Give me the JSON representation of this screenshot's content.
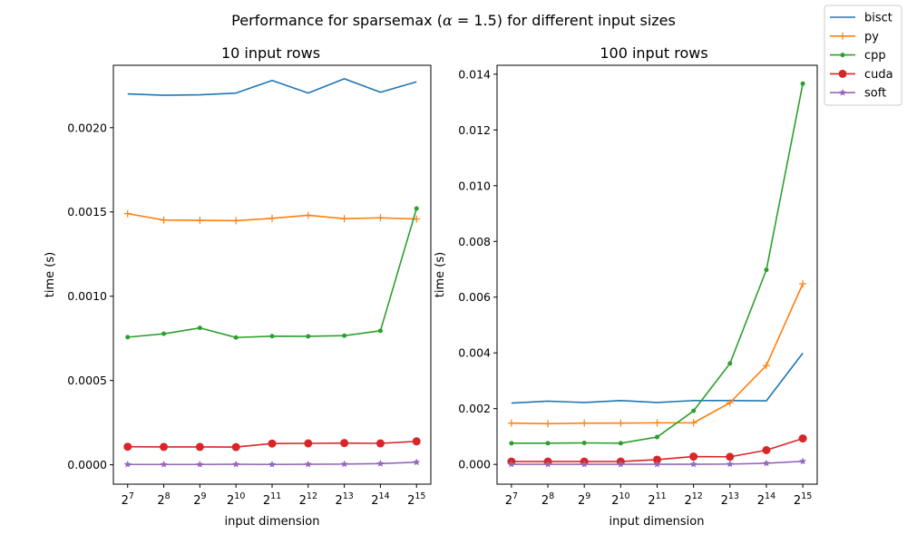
{
  "suptitle_prefix": "Performance for sparsemax (",
  "suptitle_alpha": "α",
  "suptitle_suffix": " = 1.5) for different input sizes",
  "legend": [
    "bisct",
    "py",
    "cpp",
    "cuda",
    "soft"
  ],
  "colors": {
    "bisct": "#1f77b4",
    "py": "#ff7f0e",
    "cpp": "#2ca02c",
    "cuda": "#d62728",
    "soft": "#9467bd"
  },
  "markers": {
    "bisct": "none",
    "py": "plus",
    "cpp": "small-dot",
    "cuda": "circle",
    "soft": "star"
  },
  "chart_data": [
    {
      "type": "line",
      "title": "10 input rows",
      "xlabel": "input dimension",
      "ylabel": "time (s)",
      "x_exponents": [
        7,
        8,
        9,
        10,
        11,
        12,
        13,
        14,
        15
      ],
      "x_tick_base": "2",
      "x": [
        128,
        256,
        512,
        1024,
        2048,
        4096,
        8192,
        16384,
        32768
      ],
      "ylim": [
        -0.000115,
        0.00237
      ],
      "yticks": [
        "0.0000",
        "0.0005",
        "0.0010",
        "0.0015",
        "0.0020"
      ],
      "ytick_values": [
        0,
        0.0005,
        0.001,
        0.0015,
        0.002
      ],
      "series": [
        {
          "name": "bisct",
          "values": [
            0.0022,
            0.002192,
            0.002195,
            0.002205,
            0.00228,
            0.002205,
            0.00229,
            0.00221,
            0.002272
          ]
        },
        {
          "name": "py",
          "values": [
            0.00149,
            0.001452,
            0.00145,
            0.001448,
            0.001462,
            0.00148,
            0.00146,
            0.001465,
            0.001458
          ]
        },
        {
          "name": "cpp",
          "values": [
            0.000757,
            0.000777,
            0.000812,
            0.000755,
            0.000763,
            0.000762,
            0.000766,
            0.000795,
            0.00152
          ]
        },
        {
          "name": "cuda",
          "values": [
            0.000107,
            0.000106,
            0.000106,
            0.000105,
            0.000126,
            0.000127,
            0.000129,
            0.000127,
            0.000139
          ]
        },
        {
          "name": "soft",
          "values": [
            2e-06,
            2e-06,
            2e-06,
            3e-06,
            2e-06,
            3e-06,
            4e-06,
            7e-06,
            1.5e-05
          ]
        }
      ]
    },
    {
      "type": "line",
      "title": "100 input rows",
      "xlabel": "input dimension",
      "ylabel": "time (s)",
      "x_exponents": [
        7,
        8,
        9,
        10,
        11,
        12,
        13,
        14,
        15
      ],
      "x_tick_base": "2",
      "x": [
        128,
        256,
        512,
        1024,
        2048,
        4096,
        8192,
        16384,
        32768
      ],
      "ylim": [
        -0.00071,
        0.01432
      ],
      "yticks": [
        "0.000",
        "0.002",
        "0.004",
        "0.006",
        "0.008",
        "0.010",
        "0.012",
        "0.014"
      ],
      "ytick_values": [
        0,
        0.002,
        0.004,
        0.006,
        0.008,
        0.01,
        0.012,
        0.014
      ],
      "series": [
        {
          "name": "bisct",
          "values": [
            0.0022,
            0.00227,
            0.00222,
            0.00229,
            0.00222,
            0.00229,
            0.00229,
            0.00228,
            0.00399
          ]
        },
        {
          "name": "py",
          "values": [
            0.00148,
            0.00146,
            0.00148,
            0.00148,
            0.00149,
            0.00149,
            0.00221,
            0.00355,
            0.00648
          ]
        },
        {
          "name": "cpp",
          "values": [
            0.00076,
            0.00076,
            0.00077,
            0.00076,
            0.00098,
            0.00192,
            0.00362,
            0.00698,
            0.01366
          ]
        },
        {
          "name": "cuda",
          "values": [
            0.0001,
            0.0001,
            0.0001,
            0.0001,
            0.00017,
            0.00028,
            0.00027,
            0.00051,
            0.00093
          ]
        },
        {
          "name": "soft",
          "values": [
            3e-06,
            3e-06,
            3e-06,
            3e-06,
            3e-06,
            5e-06,
            1e-05,
            4e-05,
            0.00011
          ]
        }
      ]
    }
  ]
}
